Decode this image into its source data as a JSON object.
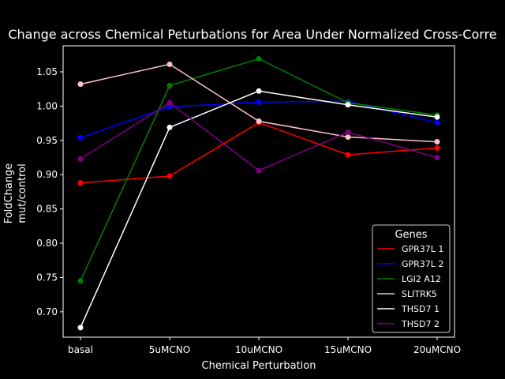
{
  "chart_data": {
    "type": "line",
    "title": "Change across Chemical Peturbations for Area Under Normalized Cross-Corre",
    "xlabel": "Chemical Perturbation",
    "ylabel_lines": [
      "FoldChange",
      "mut/control"
    ],
    "categories": [
      "basal",
      "5uMCNO",
      "10uMCNO",
      "15uMCNO",
      "20uMCNO"
    ],
    "ylim": [
      0.663,
      1.088
    ],
    "yticks": [
      "0.70",
      "0.75",
      "0.80",
      "0.85",
      "0.90",
      "0.95",
      "1.00",
      "1.05"
    ],
    "grid": false,
    "legend": {
      "title": "Genes",
      "placement": "lower-right"
    },
    "series": [
      {
        "name": "GPR37L 1",
        "color": "#ff0000",
        "values": [
          0.888,
          0.898,
          0.976,
          0.929,
          0.939
        ]
      },
      {
        "name": "GPR37L 2",
        "color": "#0000ff",
        "values": [
          0.954,
          0.999,
          1.006,
          1.007,
          0.976
        ]
      },
      {
        "name": "LGI2 A12",
        "color": "#008000",
        "values": [
          0.745,
          1.03,
          1.069,
          1.005,
          0.987
        ]
      },
      {
        "name": "SLITRK5",
        "color": "#ffc0cb",
        "values": [
          1.032,
          1.061,
          0.978,
          0.955,
          0.948
        ]
      },
      {
        "name": "THSD7 1",
        "color": "#ffffff",
        "values": [
          0.677,
          0.969,
          1.022,
          1.002,
          0.984
        ]
      },
      {
        "name": "THSD7 2",
        "color": "#800080",
        "values": [
          0.923,
          1.005,
          0.906,
          0.962,
          0.925
        ]
      }
    ]
  }
}
